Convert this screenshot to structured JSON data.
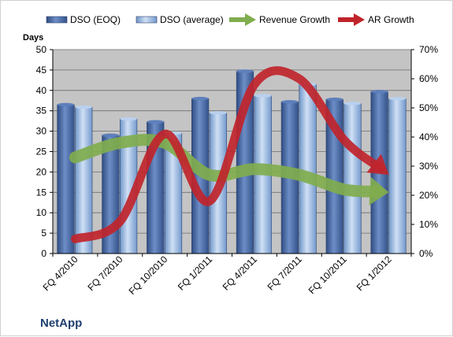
{
  "chart_data": {
    "type": "bar",
    "brand": "NetApp",
    "ylabel": "Days",
    "categories": [
      "FQ 4/2010",
      "FQ 7/2010",
      "FQ 10/2010",
      "FQ 1/2011",
      "FQ 4/2011",
      "FQ 7/2011",
      "FQ 10/2011",
      "FQ 1/2012"
    ],
    "series": [
      {
        "name": "DSO (EOQ)",
        "kind": "bar",
        "axis": "left",
        "values": [
          36.5,
          29,
          32.3,
          38,
          44.7,
          37.2,
          37.8,
          39.7
        ]
      },
      {
        "name": "DSO (average)",
        "kind": "bar",
        "axis": "left",
        "values": [
          35.9,
          33,
          29.5,
          34.5,
          38.7,
          41.5,
          36.8,
          38
        ]
      },
      {
        "name": "Revenue Growth",
        "kind": "arrow-line",
        "axis": "right",
        "values": [
          0.33,
          0.38,
          0.38,
          0.27,
          0.29,
          0.27,
          0.22,
          0.21
        ]
      },
      {
        "name": "AR Growth",
        "kind": "arrow-line",
        "axis": "right",
        "values": [
          0.05,
          0.11,
          0.41,
          0.18,
          0.58,
          0.6,
          0.39,
          0.27
        ]
      }
    ],
    "ylim": [
      0,
      50
    ],
    "yticks": [
      0,
      5,
      10,
      15,
      20,
      25,
      30,
      35,
      40,
      45,
      50
    ],
    "y2lim": [
      0,
      0.7
    ],
    "y2ticks": [
      "0%",
      "10%",
      "20%",
      "30%",
      "40%",
      "50%",
      "60%",
      "70%"
    ],
    "legend_position": "top",
    "grid": true,
    "colors": {
      "bar_dark": "#4a6aa3",
      "bar_light": "#94b6e0",
      "revenue": "#80ad4e",
      "ar": "#c0242b",
      "plot_bg": "#c4c4c4",
      "grid": "#6e6e6e"
    }
  }
}
